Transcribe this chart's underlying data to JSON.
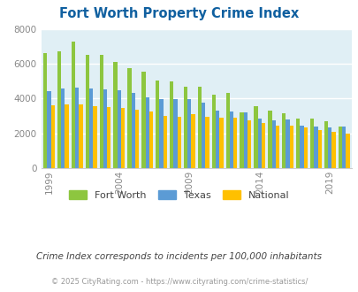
{
  "title": "Fort Worth Property Crime Index",
  "title_color": "#1060a0",
  "subtitle": "Crime Index corresponds to incidents per 100,000 inhabitants",
  "footer": "© 2025 CityRating.com - https://www.cityrating.com/crime-statistics/",
  "years": [
    1999,
    2000,
    2001,
    2002,
    2003,
    2004,
    2005,
    2006,
    2007,
    2008,
    2009,
    2010,
    2011,
    2012,
    2013,
    2014,
    2015,
    2016,
    2017,
    2018,
    2019,
    2020
  ],
  "fort_worth": [
    6600,
    6720,
    7300,
    6520,
    6530,
    6100,
    5750,
    5530,
    5050,
    4980,
    4680,
    4670,
    4220,
    4350,
    3200,
    3580,
    3280,
    3150,
    2850,
    2830,
    2670,
    2380
  ],
  "texas": [
    4420,
    4580,
    4620,
    4560,
    4530,
    4460,
    4300,
    4080,
    3980,
    3980,
    3960,
    3740,
    3300,
    3270,
    3210,
    2850,
    2760,
    2770,
    2430,
    2390,
    2340,
    2380
  ],
  "national": [
    3620,
    3680,
    3640,
    3580,
    3490,
    3460,
    3380,
    3250,
    3020,
    2950,
    3100,
    2940,
    2900,
    2880,
    2720,
    2600,
    2450,
    2420,
    2350,
    2200,
    2100,
    1960
  ],
  "bar_width": 0.27,
  "ylim": [
    0,
    8000
  ],
  "yticks": [
    0,
    2000,
    4000,
    6000,
    8000
  ],
  "xtick_years": [
    1999,
    2004,
    2009,
    2014,
    2019
  ],
  "xtick_labels": [
    "1999",
    "2004",
    "2009",
    "2014",
    "2019"
  ],
  "color_fw": "#8dc63f",
  "color_tx": "#5b9bd5",
  "color_na": "#ffc000",
  "bg_color": "#e0eff5",
  "grid_color": "#ffffff",
  "legend_labels": [
    "Fort Worth",
    "Texas",
    "National"
  ],
  "subtitle_color": "#444444",
  "footer_color": "#999999"
}
